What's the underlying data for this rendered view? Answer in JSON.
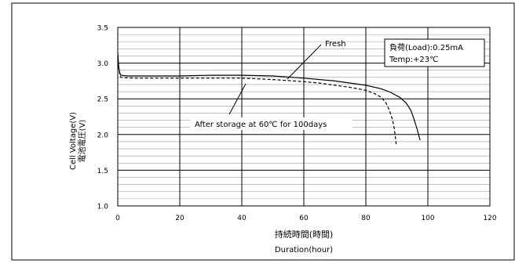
{
  "chart_data": {
    "type": "line",
    "xlabel": [
      "持続時間(時間)",
      "Duration(hour)"
    ],
    "ylabel": [
      "Cell Voltage(V)",
      "電池電圧(V)"
    ],
    "xlim": [
      0,
      120
    ],
    "ylim": [
      1.0,
      3.5
    ],
    "x_ticks": [
      "0",
      "20",
      "40",
      "60",
      "80",
      "100",
      "120"
    ],
    "y_ticks": [
      "1.0",
      "1.5",
      "2.0",
      "2.5",
      "3.0",
      "3.5"
    ],
    "grid": true,
    "conditions": [
      "負荷(Load):0.25mA",
      "Temp:+23℃"
    ],
    "series": [
      {
        "name": "Fresh",
        "style": "solid",
        "color": "#000000",
        "points": [
          [
            0,
            3.15
          ],
          [
            0.3,
            2.95
          ],
          [
            0.6,
            2.87
          ],
          [
            1,
            2.83
          ],
          [
            3,
            2.82
          ],
          [
            10,
            2.82
          ],
          [
            20,
            2.82
          ],
          [
            30,
            2.83
          ],
          [
            40,
            2.83
          ],
          [
            50,
            2.82
          ],
          [
            60,
            2.79
          ],
          [
            70,
            2.75
          ],
          [
            75,
            2.72
          ],
          [
            80,
            2.69
          ],
          [
            85,
            2.64
          ],
          [
            88,
            2.59
          ],
          [
            91,
            2.52
          ],
          [
            93,
            2.44
          ],
          [
            94.5,
            2.34
          ],
          [
            95.5,
            2.22
          ],
          [
            96.5,
            2.08
          ],
          [
            97.5,
            1.92
          ]
        ]
      },
      {
        "name": "After storage at 60℃ for 100days",
        "style": "dashed",
        "color": "#000000",
        "points": [
          [
            0,
            3.1
          ],
          [
            0.3,
            2.93
          ],
          [
            0.6,
            2.85
          ],
          [
            1,
            2.8
          ],
          [
            5,
            2.79
          ],
          [
            10,
            2.79
          ],
          [
            20,
            2.79
          ],
          [
            30,
            2.79
          ],
          [
            40,
            2.79
          ],
          [
            50,
            2.77
          ],
          [
            60,
            2.74
          ],
          [
            65,
            2.72
          ],
          [
            70,
            2.69
          ],
          [
            75,
            2.66
          ],
          [
            80,
            2.62
          ],
          [
            83,
            2.57
          ],
          [
            85,
            2.52
          ],
          [
            86.5,
            2.44
          ],
          [
            87.5,
            2.35
          ],
          [
            88.5,
            2.22
          ],
          [
            89.2,
            2.08
          ],
          [
            89.8,
            1.86
          ]
        ]
      }
    ]
  }
}
